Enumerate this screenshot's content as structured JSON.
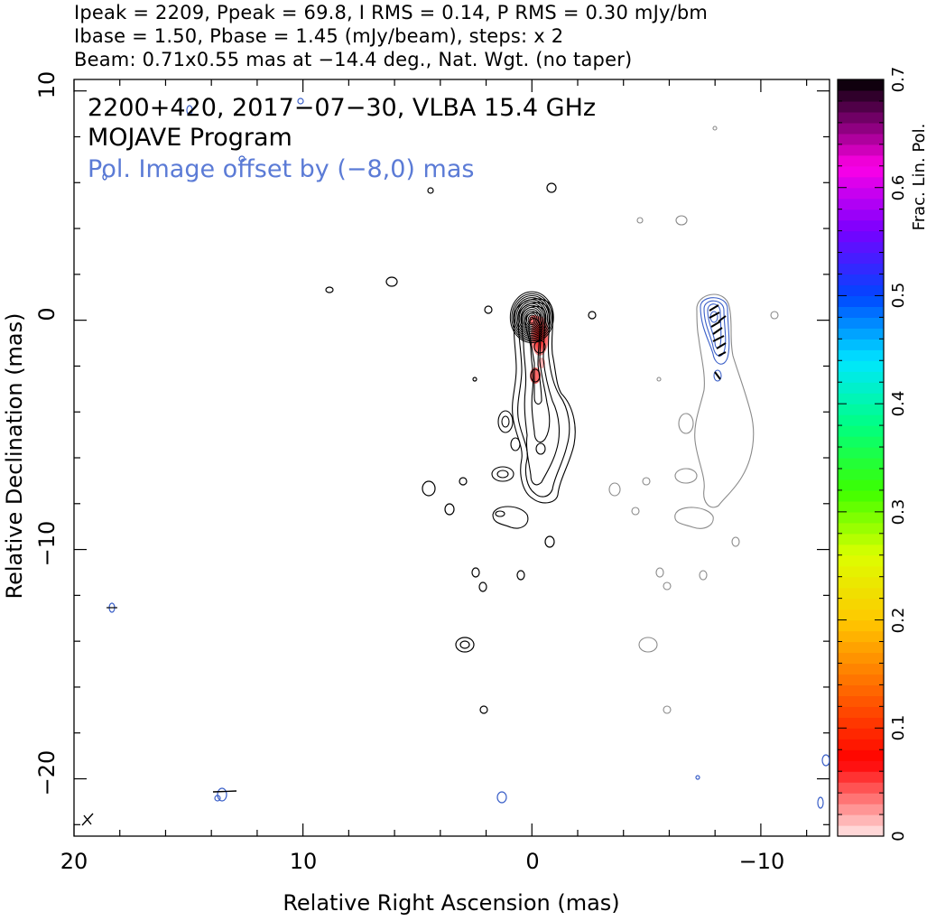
{
  "header": {
    "line1": "Ipeak = 2209, Ppeak = 69.8, I RMS = 0.14, P RMS = 0.30 mJy/bm",
    "line2": "Ibase = 1.50, Pbase = 1.45 (mJy/beam), steps: x 2",
    "line3": "Beam: 0.71x0.55 mas at −14.4 deg., Nat. Wgt. (no taper)"
  },
  "chart_data": {
    "type": "contour",
    "title": "2200+420, 2017−07−30, VLBA 15.4 GHz",
    "subtitle": "MOJAVE Program",
    "annotation": "Pol. Image offset by (−8,0) mas",
    "xlabel": "Relative Right Ascension (mas)",
    "ylabel": "Relative Declination (mas)",
    "xlim": [
      20,
      -13
    ],
    "ylim": [
      -22.5,
      10.5
    ],
    "xticks": [
      20,
      10,
      0,
      -10
    ],
    "xtick_labels": [
      "20",
      "10",
      "0",
      "−10"
    ],
    "yticks": [
      10,
      0,
      -10,
      -20
    ],
    "ytick_labels": [
      "10",
      "0",
      "−10",
      "−20"
    ],
    "colorbar": {
      "label": "Frac. Lin. Pol.",
      "range": [
        0,
        0.7
      ],
      "ticks": [
        0,
        0.1,
        0.2,
        0.3,
        0.4,
        0.5,
        0.6,
        0.7
      ],
      "tick_labels": [
        "0",
        "0.1",
        "0.2",
        "0.3",
        "0.4",
        "0.5",
        "0.6",
        "0.7"
      ]
    },
    "stokes_i": {
      "peak_mJy": 2209,
      "base_mJy": 1.5,
      "rms_mJy": 0.14,
      "steps": 2,
      "core_position": [
        0,
        0
      ],
      "jet_position_angle_deg": 190
    },
    "polarization": {
      "peak_mJy": 69.8,
      "base_mJy": 1.45,
      "rms_mJy": 0.3,
      "offset_mas": [
        -8,
        0
      ]
    },
    "beam": {
      "major_mas": 0.71,
      "minor_mas": 0.55,
      "pa_deg": -14.4,
      "weighting": "Nat. Wgt. (no taper)"
    }
  },
  "colors": {
    "stokes_i_contour": "#000000",
    "pol_i_contour": "#888888",
    "pol_contour": "#3a5fc8",
    "annotation": "#5b7bd6"
  }
}
